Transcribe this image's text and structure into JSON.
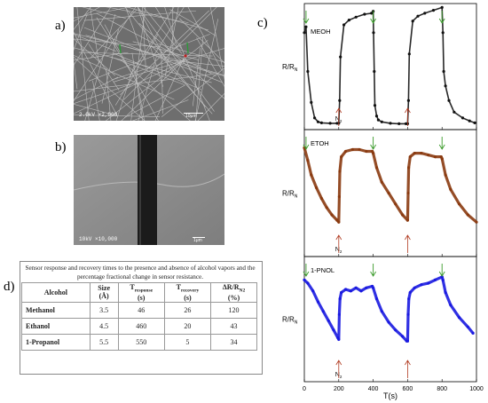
{
  "panels": {
    "a": "a)",
    "b": "b)",
    "c": "c)",
    "d": "d)"
  },
  "sem_a": {
    "info": "2.0kV  ×2,000",
    "scale": "10μm"
  },
  "sem_b": {
    "info": "10kV  ×10,000",
    "scale": "1μm"
  },
  "table": {
    "caption": "Sensor response and recovery times to the presence and absence of alcohol vapors and the percentage fractional change in sensor resistance.",
    "headers": {
      "alcohol": "Alcohol",
      "size": "Size",
      "size_unit": "(Å)",
      "tresp": "T",
      "tresp_sub": "response",
      "tresp_unit": "(s)",
      "trec": "T",
      "trec_sub": "recovery",
      "trec_unit": "(s)",
      "dr": "ΔR/R",
      "dr_sub": "N2",
      "dr_unit": "(%)"
    },
    "rows": [
      {
        "alcohol": "Methanol",
        "size": "3.5",
        "tresp": "46",
        "trec": "26",
        "dr": "120"
      },
      {
        "alcohol": "Ethanol",
        "size": "4.5",
        "tresp": "460",
        "trec": "20",
        "dr": "43"
      },
      {
        "alcohol": "1-Propanol",
        "size": "5.5",
        "tresp": "550",
        "trec": "5",
        "dr": "34"
      }
    ]
  },
  "chart_data": {
    "type": "scatter",
    "xlabel": "T(s)",
    "ylabel": "R/R",
    "ylabel_sub": "N",
    "xlim": [
      0,
      1000
    ],
    "xticks": [
      "0",
      "200",
      "400",
      "600",
      "800",
      "1000"
    ],
    "subplots": [
      {
        "name": "MEOH",
        "color": "#111111",
        "label_n2": "N",
        "label_n2_sub": "2",
        "x": [
          0,
          10,
          20,
          40,
          60,
          80,
          100,
          150,
          190,
          200,
          205,
          210,
          230,
          260,
          300,
          350,
          390,
          400,
          402,
          406,
          410,
          420,
          430,
          450,
          500,
          550,
          590,
          600,
          605,
          610,
          630,
          660,
          700,
          750,
          800,
          805,
          810,
          820,
          840,
          870,
          920,
          960,
          990
        ],
        "y": [
          1.0,
          1.06,
          0.6,
          0.28,
          0.12,
          0.08,
          0.07,
          0.065,
          0.065,
          0.065,
          0.3,
          0.75,
          1.08,
          1.13,
          1.16,
          1.19,
          1.2,
          1.22,
          1.0,
          0.6,
          0.25,
          0.14,
          0.1,
          0.08,
          0.065,
          0.06,
          0.06,
          0.06,
          0.3,
          0.78,
          1.12,
          1.17,
          1.2,
          1.23,
          1.26,
          1.0,
          0.6,
          0.45,
          0.3,
          0.18,
          0.12,
          0.09,
          0.07
        ]
      },
      {
        "name": "ETOH",
        "color": "#8a3a10",
        "label_n2": "N",
        "label_n2_sub": "2",
        "x": [
          0,
          20,
          40,
          70,
          100,
          130,
          160,
          190,
          200,
          203,
          206,
          215,
          240,
          280,
          320,
          360,
          395,
          400,
          420,
          450,
          490,
          530,
          570,
          600,
          603,
          606,
          615,
          640,
          680,
          720,
          760,
          795,
          800,
          820,
          850,
          900,
          950,
          1000
        ],
        "y": [
          0.95,
          0.88,
          0.8,
          0.73,
          0.67,
          0.62,
          0.58,
          0.55,
          0.54,
          0.68,
          0.82,
          0.9,
          0.93,
          0.94,
          0.94,
          0.93,
          0.93,
          0.92,
          0.84,
          0.76,
          0.7,
          0.64,
          0.58,
          0.55,
          0.7,
          0.84,
          0.9,
          0.92,
          0.92,
          0.91,
          0.9,
          0.9,
          0.89,
          0.8,
          0.72,
          0.64,
          0.58,
          0.54
        ]
      },
      {
        "name": "1-PNOL",
        "color": "#1a1ae0",
        "label_n2": "N",
        "label_n2_sub": "2",
        "x": [
          0,
          20,
          50,
          80,
          110,
          140,
          170,
          195,
          200,
          203,
          207,
          215,
          240,
          270,
          300,
          330,
          360,
          395,
          400,
          420,
          450,
          490,
          530,
          570,
          595,
          600,
          603,
          607,
          615,
          640,
          680,
          720,
          760,
          800,
          805,
          820,
          850,
          900,
          950,
          980
        ],
        "y": [
          1.0,
          0.98,
          0.93,
          0.86,
          0.8,
          0.74,
          0.68,
          0.63,
          0.62,
          0.78,
          0.88,
          0.92,
          0.94,
          0.93,
          0.95,
          0.93,
          0.95,
          0.96,
          0.95,
          0.88,
          0.8,
          0.73,
          0.68,
          0.64,
          0.61,
          0.61,
          0.78,
          0.88,
          0.92,
          0.95,
          0.97,
          0.98,
          1.0,
          1.02,
          1.0,
          0.92,
          0.84,
          0.76,
          0.7,
          0.66
        ]
      }
    ]
  }
}
